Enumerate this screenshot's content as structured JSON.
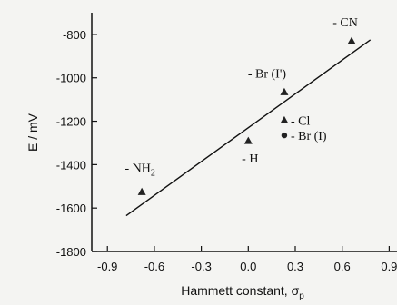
{
  "chart_data": {
    "type": "scatter",
    "title": "",
    "xlabel_main": "Hammett constant, σ",
    "xlabel_sub": "p",
    "ylabel": "E / mV",
    "xlim": [
      -1.0,
      0.95
    ],
    "ylim": [
      -1800,
      -700
    ],
    "xticks": [
      {
        "value": -0.9,
        "label": "-0.9"
      },
      {
        "value": -0.6,
        "label": "-0.6"
      },
      {
        "value": -0.3,
        "label": "-0.3"
      },
      {
        "value": 0.0,
        "label": "0.0"
      },
      {
        "value": 0.3,
        "label": "0.3"
      },
      {
        "value": 0.6,
        "label": "0.6"
      },
      {
        "value": 0.9,
        "label": "0.9"
      }
    ],
    "yticks": [
      {
        "value": -800,
        "label": "-800"
      },
      {
        "value": -1000,
        "label": "-1000"
      },
      {
        "value": -1200,
        "label": "-1200"
      },
      {
        "value": -1400,
        "label": "-1400"
      },
      {
        "value": -1600,
        "label": "-1600"
      },
      {
        "value": -1800,
        "label": "-1800"
      }
    ],
    "points": [
      {
        "x": -0.68,
        "y": -1525,
        "marker": "triangle",
        "label_main": "- NH",
        "label_sub": "2",
        "label_pos": "above"
      },
      {
        "x": 0.0,
        "y": -1290,
        "marker": "triangle",
        "label_main": "- H",
        "label_sub": "",
        "label_pos": "below"
      },
      {
        "x": 0.23,
        "y": -1195,
        "marker": "triangle",
        "label_main": "- Cl",
        "label_sub": "",
        "label_pos": "right"
      },
      {
        "x": 0.23,
        "y": -1265,
        "marker": "circle",
        "label_main": "- Br (I)",
        "label_sub": "",
        "label_pos": "right"
      },
      {
        "x": 0.23,
        "y": -1065,
        "marker": "triangle",
        "label_main": "- Br (I')",
        "label_sub": "",
        "label_pos": "above"
      },
      {
        "x": 0.66,
        "y": -830,
        "marker": "triangle",
        "label_main": "- CN",
        "label_sub": "",
        "label_pos": "above"
      }
    ],
    "fit_line": {
      "x": [
        -0.78,
        0.78
      ],
      "y": [
        -1635,
        -825
      ]
    },
    "grid": false,
    "legend": "none"
  }
}
